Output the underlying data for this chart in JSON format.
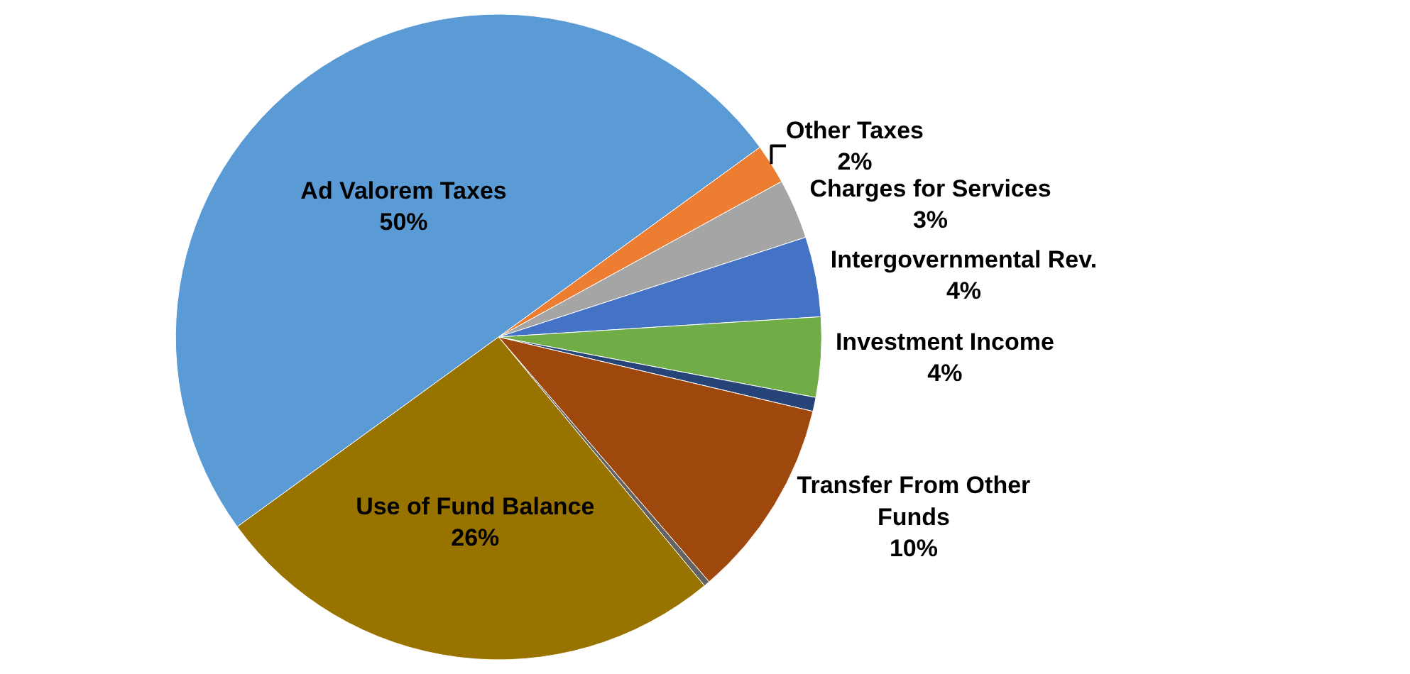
{
  "chart_data": {
    "type": "pie",
    "categories": [
      "Ad Valorem Taxes",
      "Other Taxes",
      "Charges for Services",
      "Intergovernmental Rev.",
      "Investment Income",
      null,
      "Transfer From Other Funds",
      null,
      "Use of Fund Balance"
    ],
    "values": [
      50,
      2,
      3,
      4,
      4,
      0.7,
      10,
      0.3,
      26
    ],
    "value_labels": [
      "50%",
      "2%",
      "3%",
      "4%",
      "4%",
      null,
      "10%",
      null,
      "26%"
    ],
    "colors": [
      "#5b9bd5",
      "#ed7d31",
      "#a5a5a5",
      "#4472c4",
      "#70ad47",
      "#264478",
      "#9e480e",
      "#636363",
      "#997300"
    ],
    "legend": false
  }
}
